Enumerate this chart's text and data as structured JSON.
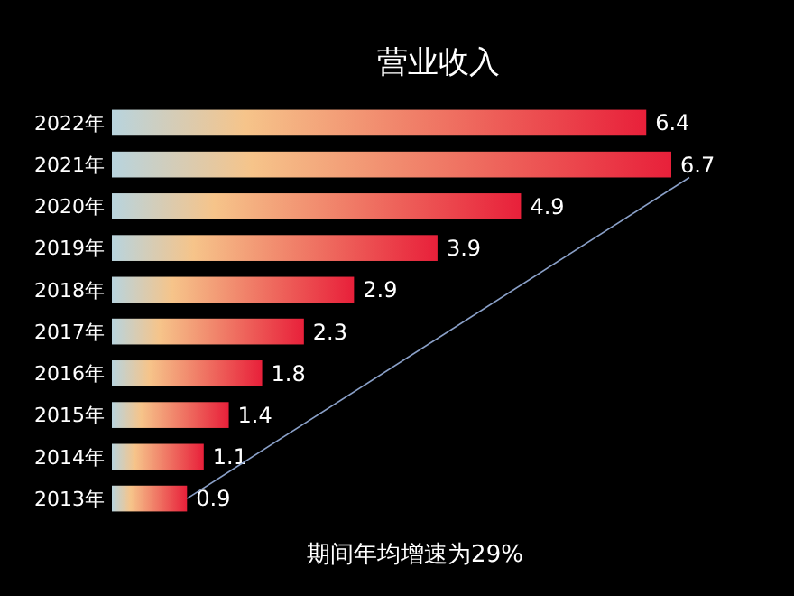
{
  "chart_data": {
    "type": "bar",
    "orientation": "horizontal",
    "title": "营业收入",
    "annotations": [
      "期间年均增速为29%"
    ],
    "categories": [
      "2022年",
      "2021年",
      "2020年",
      "2019年",
      "2018年",
      "2017年",
      "2016年",
      "2015年",
      "2014年",
      "2013年"
    ],
    "values": [
      6.4,
      6.7,
      4.9,
      3.9,
      2.9,
      2.3,
      1.8,
      1.4,
      1.1,
      0.9
    ],
    "color": "#e8203a",
    "data_labels": true
  }
}
